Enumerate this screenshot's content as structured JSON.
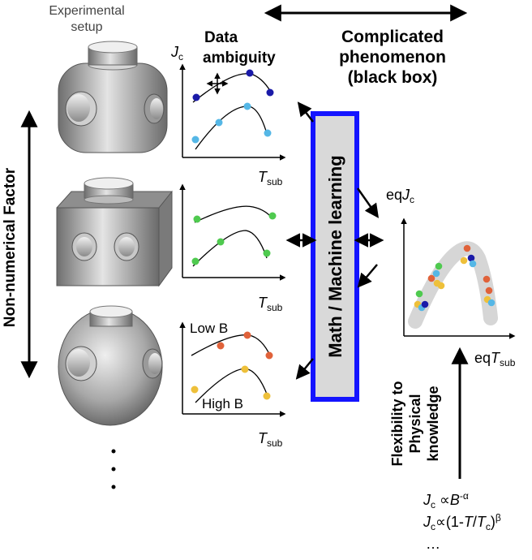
{
  "header": {
    "experimental_setup": [
      "Experimental",
      "setup"
    ],
    "complicated": [
      "Complicated",
      "phenomenon",
      "(black box)"
    ],
    "data_ambiguity": [
      "Data",
      "ambiguity"
    ]
  },
  "left_label": "Non-numerical Factor",
  "center_box": "Math / Machine learning",
  "flexibility": [
    "Flexibility to",
    "Physical",
    "knowledge"
  ],
  "axis": {
    "y_main": "J",
    "y_sub": "c",
    "x_main": "T",
    "x_sub": "sub",
    "eq_y_prefix": "eq",
    "eq_x_prefix": "eq"
  },
  "plot3_labels": {
    "low": "Low B",
    "high": "High B"
  },
  "formulas": {
    "f1": {
      "a": "J",
      "b": "c",
      "c": " ∝",
      "d": "B",
      "e": "-α"
    },
    "f2": {
      "a": "J",
      "b": "c",
      "c": "∝(1-",
      "d": "T",
      "e": "/",
      "f": "T",
      "g": "c",
      "h": ")",
      "i": "β"
    },
    "ellipsis": "…"
  },
  "colors": {
    "dark_blue": "#1a1aa8",
    "light_blue": "#55b7e6",
    "green": "#4fca4f",
    "orange": "#e0623a",
    "yellow": "#eec03a",
    "box_border": "#1414ff",
    "box_fill": "#d9d9d9"
  }
}
